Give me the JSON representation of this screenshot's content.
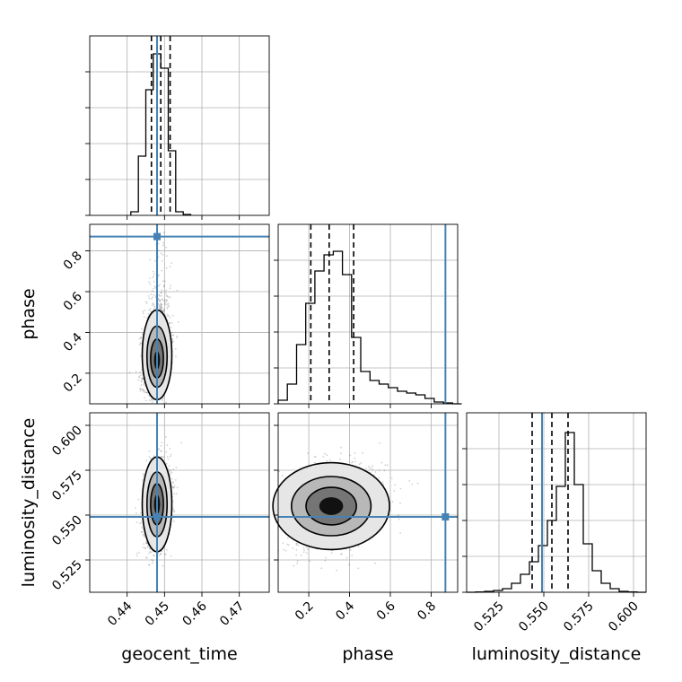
{
  "chart_data": {
    "type": "corner",
    "parameters": [
      "geocent_time",
      "phase",
      "luminosity_distance"
    ],
    "axis_labels": {
      "geocent_time": "geocent_time",
      "phase": "phase",
      "luminosity_distance": "luminosity_distance"
    },
    "ranges": {
      "geocent_time": [
        0.43,
        0.478
      ],
      "phase": [
        0.05,
        0.93
      ],
      "luminosity_distance": [
        0.507,
        0.607
      ]
    },
    "ticks": {
      "geocent_time": [
        0.44,
        0.45,
        0.46,
        0.47
      ],
      "phase": [
        0.2,
        0.4,
        0.6,
        0.8
      ],
      "luminosity_distance": [
        0.525,
        0.55,
        0.575,
        0.6
      ]
    },
    "tick_labels": {
      "geocent_time": [
        "0.44",
        "0.45",
        "0.46",
        "0.47"
      ],
      "phase": [
        "0.2",
        "0.4",
        "0.6",
        "0.8"
      ],
      "luminosity_distance": [
        "0.525",
        "0.550",
        "0.575",
        "0.600"
      ]
    },
    "truths": {
      "geocent_time": 0.448,
      "phase": 0.87,
      "luminosity_distance": 0.549
    },
    "quantiles": {
      "geocent_time": [
        0.4465,
        0.449,
        0.4515
      ],
      "phase": [
        0.21,
        0.3,
        0.42
      ],
      "luminosity_distance": [
        0.5435,
        0.5545,
        0.5635
      ]
    },
    "histograms": {
      "geocent_time": {
        "bins": [
          0.441,
          0.443,
          0.445,
          0.447,
          0.449,
          0.451,
          0.453,
          0.455
        ],
        "counts": [
          0.02,
          0.33,
          0.7,
          0.9,
          0.82,
          0.36,
          0.02,
          0.005
        ]
      },
      "phase": {
        "bins": [
          0.05,
          0.095,
          0.14,
          0.185,
          0.23,
          0.275,
          0.32,
          0.365,
          0.41,
          0.455,
          0.5,
          0.545,
          0.59,
          0.635,
          0.68,
          0.725,
          0.77,
          0.815,
          0.86,
          0.905
        ],
        "counts": [
          0.02,
          0.11,
          0.33,
          0.56,
          0.74,
          0.83,
          0.85,
          0.72,
          0.37,
          0.18,
          0.13,
          0.11,
          0.09,
          0.07,
          0.06,
          0.05,
          0.03,
          0.01,
          0.005,
          0.0
        ]
      },
      "luminosity_distance": {
        "bins": [
          0.507,
          0.512,
          0.517,
          0.522,
          0.527,
          0.532,
          0.537,
          0.542,
          0.547,
          0.552,
          0.557,
          0.562,
          0.567,
          0.572,
          0.577,
          0.582,
          0.587,
          0.592,
          0.597,
          0.602
        ],
        "counts": [
          0.0,
          0.002,
          0.005,
          0.01,
          0.02,
          0.05,
          0.1,
          0.17,
          0.26,
          0.4,
          0.59,
          0.89,
          0.6,
          0.27,
          0.12,
          0.05,
          0.02,
          0.005,
          0.002,
          0.0
        ]
      }
    },
    "grid": true,
    "colors": {
      "truth": "#4682b4",
      "histogram": "#000000",
      "contour": "#000000",
      "grid": "#b0b0b0"
    }
  }
}
